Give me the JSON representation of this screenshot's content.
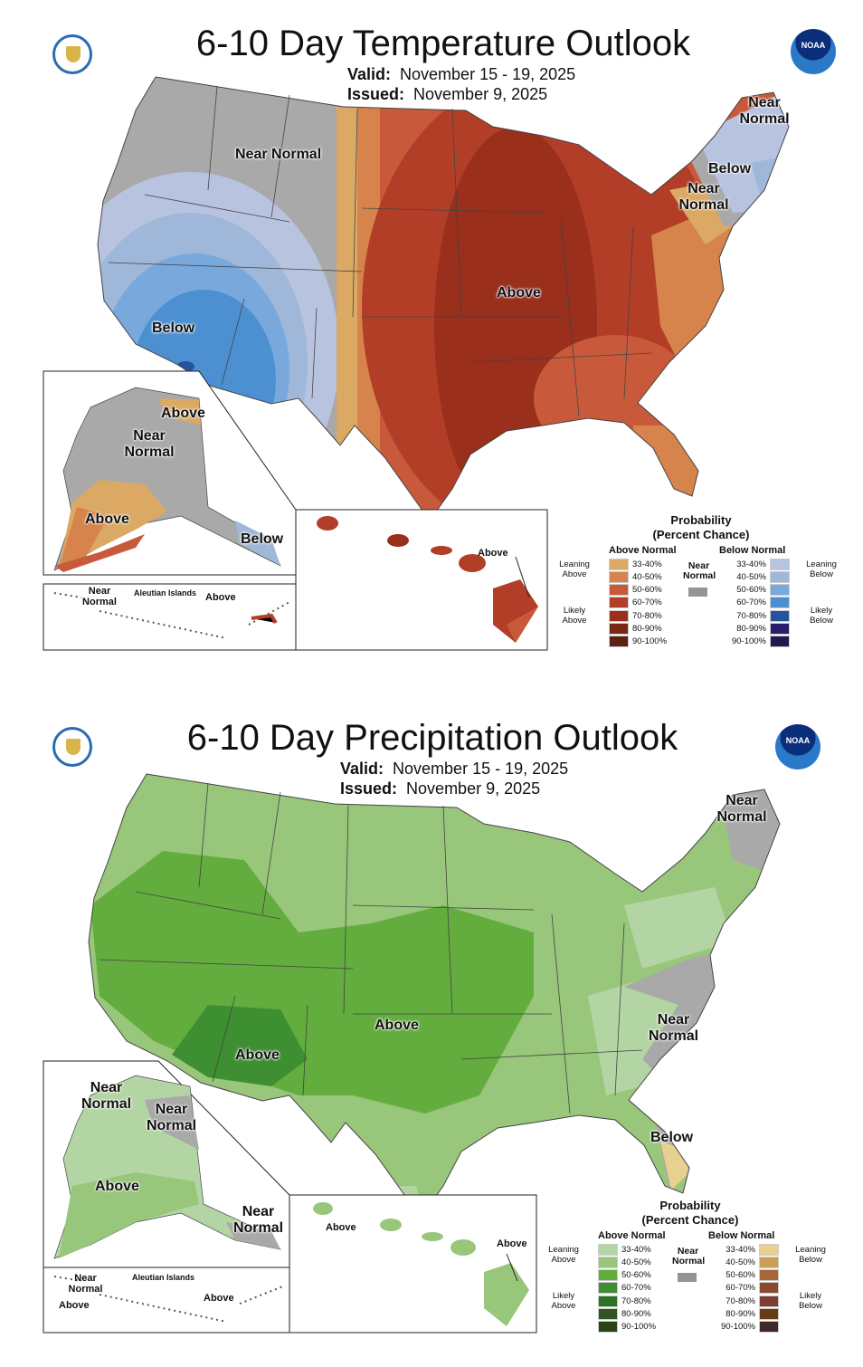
{
  "maps": [
    {
      "title": "6-10 Day Temperature Outlook",
      "valid_label": "Valid:",
      "valid": "November 15 - 19, 2025",
      "issued_label": "Issued:",
      "issued": "November 9, 2025",
      "labels": {
        "nw_near": "Near Normal",
        "ne_near": "Near Normal",
        "ne_below": "Below",
        "mid_near": "Near Normal",
        "center": "Above",
        "sw": "Below",
        "ak_above": "Above",
        "ak_near": "Near Normal",
        "ak_sw_above": "Above",
        "ak_below": "Below",
        "aleut_near": "Near Normal",
        "aleut_title": "Aleutian Islands",
        "aleut_above": "Above",
        "hi_above": "Above"
      },
      "legend": {
        "title": "Probability",
        "subtitle": "(Percent Chance)",
        "above_header": "Above Normal",
        "below_header": "Below Normal",
        "near_label": "Near Normal",
        "near_color": "#949494",
        "leaning_above": "Leaning Above",
        "likely_above": "Likely Above",
        "leaning_below": "Leaning Below",
        "likely_below": "Likely Below",
        "ranges": [
          "33-40%",
          "40-50%",
          "50-60%",
          "60-70%",
          "70-80%",
          "80-90%",
          "90-100%"
        ],
        "above_colors": [
          "#dba964",
          "#d6844b",
          "#c85a3b",
          "#b23e27",
          "#9a2f1c",
          "#7a2714",
          "#5a2010"
        ],
        "below_colors": [
          "#b8c3e0",
          "#9fb7d9",
          "#79a9dc",
          "#4d90d2",
          "#24549b",
          "#2a1e6a",
          "#1e1a4a"
        ]
      }
    },
    {
      "title": "6-10 Day Precipitation Outlook",
      "valid_label": "Valid:",
      "valid": "November 15 - 19, 2025",
      "issued_label": "Issued:",
      "issued": "November 9, 2025",
      "labels": {
        "ne_near": "Near Normal",
        "sw_above": "Above",
        "center_above": "Above",
        "se_near": "Near Normal",
        "fl_below": "Below",
        "ak_near1": "Near Normal",
        "ak_near2": "Near Normal",
        "ak_above": "Above",
        "ak_se_near": "Near Normal",
        "aleut_near": "Near Normal",
        "aleut_above_w": "Above",
        "aleut_title": "Aleutian Islands",
        "aleut_above": "Above",
        "hi_above_w": "Above",
        "hi_above_e": "Above"
      },
      "legend": {
        "title": "Probability",
        "subtitle": "(Percent Chance)",
        "above_header": "Above Normal",
        "below_header": "Below Normal",
        "near_label": "Near Normal",
        "near_color": "#949494",
        "leaning_above": "Leaning Above",
        "likely_above": "Likely Above",
        "leaning_below": "Leaning Below",
        "likely_below": "Likely Below",
        "ranges": [
          "33-40%",
          "40-50%",
          "50-60%",
          "60-70%",
          "70-80%",
          "80-90%",
          "90-100%"
        ],
        "above_colors": [
          "#b3d5a4",
          "#98c67b",
          "#62ad3d",
          "#3e8f31",
          "#2f7027",
          "#325420",
          "#2a4417"
        ],
        "below_colors": [
          "#e8d08f",
          "#c9a055",
          "#a7653a",
          "#8a4a32",
          "#7d3d32",
          "#6a3a14",
          "#3e2a28"
        ]
      }
    }
  ]
}
